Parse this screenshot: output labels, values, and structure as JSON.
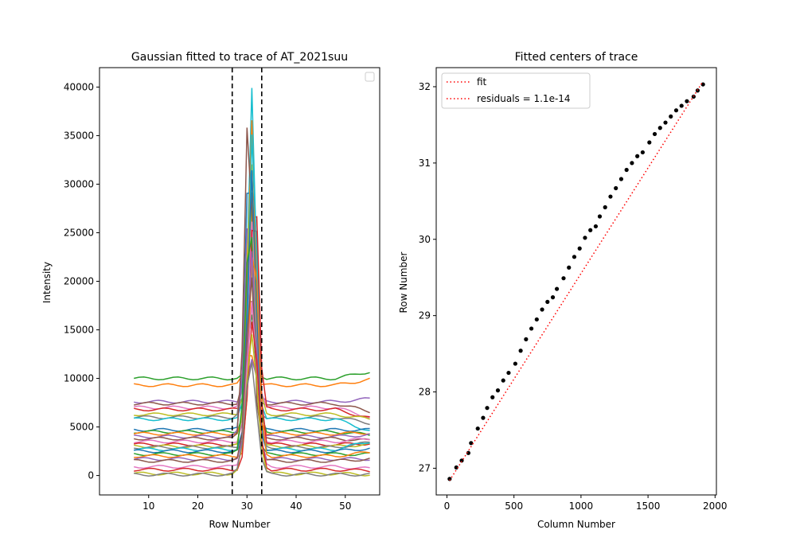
{
  "chart_data": [
    {
      "type": "line",
      "title": "Gaussian fitted to trace of AT_2021suu",
      "xlabel": "Row Number",
      "ylabel": "Intensity",
      "xlim": [
        0,
        57
      ],
      "ylim": [
        -2000,
        42000
      ],
      "xticks": [
        10,
        20,
        30,
        40,
        50
      ],
      "yticks": [
        0,
        5000,
        10000,
        15000,
        20000,
        25000,
        30000,
        35000,
        40000
      ],
      "xtick_labels": [
        "10",
        "20",
        "30",
        "40",
        "50"
      ],
      "ytick_labels": [
        "0",
        "5000",
        "10000",
        "15000",
        "20000",
        "25000",
        "30000",
        "35000",
        "40000"
      ],
      "x_range": [
        7,
        55
      ],
      "vlines": [
        27,
        33
      ],
      "vline_color": "#000000",
      "legend": "empty box, top-right",
      "trace_profiles": [
        {
          "color": "#2ca02c",
          "baseline": 10000,
          "slope": 700,
          "peak": 16500,
          "center": 31,
          "width": 0.8
        },
        {
          "color": "#ff7f0e",
          "baseline": 9300,
          "slope": 600,
          "peak": 13000,
          "center": 30.5,
          "width": 0.9
        },
        {
          "color": "#9467bd",
          "baseline": 7600,
          "slope": 300,
          "peak": 12000,
          "center": 31,
          "width": 0.9
        },
        {
          "color": "#8c564b",
          "baseline": 7400,
          "slope": -800,
          "peak": 20000,
          "center": 30.5,
          "width": 0.8
        },
        {
          "color": "#e377c2",
          "baseline": 7000,
          "slope": -1000,
          "peak": 26000,
          "center": 31,
          "width": 0.9
        },
        {
          "color": "#d62728",
          "baseline": 6800,
          "slope": -900,
          "peak": 31000,
          "center": 31.5,
          "width": 0.8
        },
        {
          "color": "#bcbd22",
          "baseline": 6300,
          "slope": -500,
          "peak": 28000,
          "center": 31,
          "width": 0.9
        },
        {
          "color": "#7f7f7f",
          "baseline": 6000,
          "slope": -600,
          "peak": 24000,
          "center": 30.5,
          "width": 0.9
        },
        {
          "color": "#17becf",
          "baseline": 5800,
          "slope": -1200,
          "peak": 40000,
          "center": 31,
          "width": 0.8
        },
        {
          "color": "#1f77b4",
          "baseline": 4700,
          "slope": 0,
          "peak": 34500,
          "center": 30.5,
          "width": 0.8
        },
        {
          "color": "#2ca02c",
          "baseline": 4500,
          "slope": -300,
          "peak": 31000,
          "center": 31,
          "width": 0.85
        },
        {
          "color": "#ff7f0e",
          "baseline": 4300,
          "slope": 100,
          "peak": 36500,
          "center": 31,
          "width": 0.8
        },
        {
          "color": "#9467bd",
          "baseline": 4000,
          "slope": 200,
          "peak": 29000,
          "center": 30.5,
          "width": 0.9
        },
        {
          "color": "#8c564b",
          "baseline": 3800,
          "slope": -200,
          "peak": 38300,
          "center": 30.3,
          "width": 0.8
        },
        {
          "color": "#e377c2",
          "baseline": 3500,
          "slope": 300,
          "peak": 26000,
          "center": 31,
          "width": 0.9
        },
        {
          "color": "#d62728",
          "baseline": 3200,
          "slope": 100,
          "peak": 30000,
          "center": 31.5,
          "width": 0.8
        },
        {
          "color": "#bcbd22",
          "baseline": 3000,
          "slope": 200,
          "peak": 33000,
          "center": 30.8,
          "width": 0.85
        },
        {
          "color": "#7f7f7f",
          "baseline": 2900,
          "slope": 500,
          "peak": 22000,
          "center": 31,
          "width": 0.9
        },
        {
          "color": "#17becf",
          "baseline": 2700,
          "slope": 800,
          "peak": 36000,
          "center": 31.2,
          "width": 0.8
        },
        {
          "color": "#1f77b4",
          "baseline": 2500,
          "slope": 300,
          "peak": 31500,
          "center": 31,
          "width": 0.85
        },
        {
          "color": "#2ca02c",
          "baseline": 2200,
          "slope": 0,
          "peak": 27000,
          "center": 30.6,
          "width": 0.9
        },
        {
          "color": "#ff7f0e",
          "baseline": 2000,
          "slope": 400,
          "peak": 25000,
          "center": 31.4,
          "width": 0.85
        },
        {
          "color": "#9467bd",
          "baseline": 1700,
          "slope": 0,
          "peak": 23000,
          "center": 31,
          "width": 0.9
        },
        {
          "color": "#8c564b",
          "baseline": 1500,
          "slope": 200,
          "peak": 21000,
          "center": 30.8,
          "width": 0.9
        },
        {
          "color": "#e377c2",
          "baseline": 900,
          "slope": -200,
          "peak": 18000,
          "center": 31,
          "width": 1.0
        },
        {
          "color": "#d62728",
          "baseline": 600,
          "slope": -100,
          "peak": 16000,
          "center": 31.2,
          "width": 1.0
        },
        {
          "color": "#bcbd22",
          "baseline": 200,
          "slope": -100,
          "peak": 14500,
          "center": 31,
          "width": 1.1
        },
        {
          "color": "#7f7f7f",
          "baseline": 100,
          "slope": 0,
          "peak": 12000,
          "center": 30.8,
          "width": 1.1
        }
      ]
    },
    {
      "type": "scatter",
      "title": "Fitted centers of trace",
      "xlabel": "Column Number",
      "ylabel": "Row Number",
      "xlim": [
        -80,
        2010
      ],
      "ylim": [
        26.65,
        32.25
      ],
      "xticks": [
        0,
        500,
        1000,
        1500,
        2000
      ],
      "yticks": [
        27,
        28,
        29,
        30,
        31,
        32
      ],
      "xtick_labels": [
        "0",
        "500",
        "1000",
        "1500",
        "2000"
      ],
      "ytick_labels": [
        "27",
        "28",
        "29",
        "30",
        "31",
        "32"
      ],
      "point_color": "#000000",
      "points": [
        [
          20,
          26.86
        ],
        [
          70,
          27.01
        ],
        [
          110,
          27.1
        ],
        [
          160,
          27.2
        ],
        [
          180,
          27.33
        ],
        [
          230,
          27.52
        ],
        [
          270,
          27.66
        ],
        [
          300,
          27.79
        ],
        [
          340,
          27.93
        ],
        [
          380,
          28.02
        ],
        [
          420,
          28.15
        ],
        [
          460,
          28.25
        ],
        [
          510,
          28.37
        ],
        [
          550,
          28.54
        ],
        [
          590,
          28.69
        ],
        [
          630,
          28.83
        ],
        [
          670,
          28.95
        ],
        [
          710,
          29.08
        ],
        [
          750,
          29.18
        ],
        [
          790,
          29.24
        ],
        [
          820,
          29.35
        ],
        [
          870,
          29.49
        ],
        [
          910,
          29.63
        ],
        [
          950,
          29.77
        ],
        [
          990,
          29.88
        ],
        [
          1030,
          30.02
        ],
        [
          1070,
          30.12
        ],
        [
          1110,
          30.17
        ],
        [
          1140,
          30.3
        ],
        [
          1180,
          30.42
        ],
        [
          1220,
          30.56
        ],
        [
          1260,
          30.67
        ],
        [
          1300,
          30.79
        ],
        [
          1340,
          30.91
        ],
        [
          1380,
          31.0
        ],
        [
          1420,
          31.09
        ],
        [
          1460,
          31.14
        ],
        [
          1510,
          31.27
        ],
        [
          1550,
          31.38
        ],
        [
          1590,
          31.46
        ],
        [
          1630,
          31.53
        ],
        [
          1670,
          31.61
        ],
        [
          1710,
          31.69
        ],
        [
          1750,
          31.75
        ],
        [
          1790,
          31.81
        ],
        [
          1840,
          31.87
        ],
        [
          1870,
          31.95
        ],
        [
          1910,
          32.03
        ]
      ],
      "fit_line": {
        "x0": 20,
        "y0": 26.84,
        "x1": 1910,
        "y1": 32.07,
        "color": "#ff0000",
        "style": "dotted"
      },
      "legend": {
        "position": "upper-left",
        "entries": [
          {
            "label": "fit",
            "color": "#ff0000",
            "style": "dotted"
          },
          {
            "label": "residuals = 1.1e-14",
            "color": "#ff0000",
            "style": "dotted"
          }
        ]
      }
    }
  ]
}
